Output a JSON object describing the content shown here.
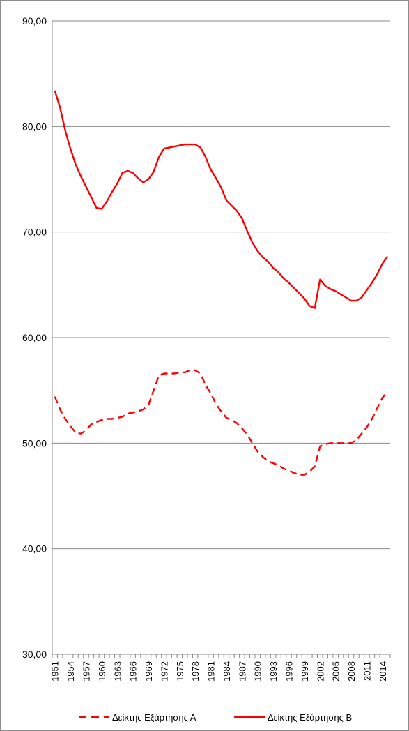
{
  "chart_data": {
    "type": "line",
    "title": "",
    "xlabel": "",
    "ylabel": "",
    "ylim": [
      30,
      90
    ],
    "y_ticks": [
      "30,00",
      "40,00",
      "50,00",
      "60,00",
      "70,00",
      "80,00",
      "90,00"
    ],
    "x_tick_labels": [
      "1951",
      "1954",
      "1957",
      "1960",
      "1963",
      "1966",
      "1969",
      "1972",
      "1975",
      "1978",
      "1981",
      "1984",
      "1987",
      "1990",
      "1993",
      "1996",
      "1999",
      "2002",
      "2005",
      "2008",
      "2011",
      "2014"
    ],
    "x_start": 1951,
    "x_end": 2015,
    "grid": "horizontal",
    "legend_position": "bottom",
    "series": [
      {
        "name": "Δείκτης Εξάρτησης Α",
        "color": "#ff0000",
        "style": "dashed",
        "points": [
          [
            1951,
            54.4
          ],
          [
            1952,
            53.2
          ],
          [
            1953,
            52.3
          ],
          [
            1954,
            51.6
          ],
          [
            1955,
            51.0
          ],
          [
            1956,
            50.9
          ],
          [
            1957,
            51.2
          ],
          [
            1958,
            51.8
          ],
          [
            1959,
            52.0
          ],
          [
            1960,
            52.2
          ],
          [
            1961,
            52.3
          ],
          [
            1962,
            52.3
          ],
          [
            1963,
            52.4
          ],
          [
            1964,
            52.5
          ],
          [
            1965,
            52.8
          ],
          [
            1966,
            52.9
          ],
          [
            1967,
            53.0
          ],
          [
            1968,
            53.2
          ],
          [
            1969,
            53.6
          ],
          [
            1970,
            55.0
          ],
          [
            1971,
            56.4
          ],
          [
            1972,
            56.6
          ],
          [
            1973,
            56.6
          ],
          [
            1974,
            56.6
          ],
          [
            1975,
            56.7
          ],
          [
            1976,
            56.7
          ],
          [
            1977,
            56.9
          ],
          [
            1978,
            56.9
          ],
          [
            1979,
            56.6
          ],
          [
            1980,
            55.5
          ],
          [
            1981,
            54.7
          ],
          [
            1982,
            53.7
          ],
          [
            1983,
            53.0
          ],
          [
            1984,
            52.4
          ],
          [
            1985,
            52.2
          ],
          [
            1986,
            51.9
          ],
          [
            1987,
            51.4
          ],
          [
            1988,
            50.8
          ],
          [
            1989,
            50.0
          ],
          [
            1990,
            49.2
          ],
          [
            1991,
            48.7
          ],
          [
            1992,
            48.3
          ],
          [
            1993,
            48.1
          ],
          [
            1994,
            47.9
          ],
          [
            1995,
            47.6
          ],
          [
            1996,
            47.4
          ],
          [
            1997,
            47.2
          ],
          [
            1998,
            47.0
          ],
          [
            1999,
            47.0
          ],
          [
            2000,
            47.3
          ],
          [
            2001,
            47.8
          ],
          [
            2002,
            49.7
          ],
          [
            2003,
            49.9
          ],
          [
            2004,
            50.0
          ],
          [
            2005,
            50.0
          ],
          [
            2006,
            50.0
          ],
          [
            2007,
            50.0
          ],
          [
            2008,
            50.0
          ],
          [
            2009,
            50.3
          ],
          [
            2010,
            50.9
          ],
          [
            2011,
            51.5
          ],
          [
            2012,
            52.3
          ],
          [
            2013,
            53.3
          ],
          [
            2014,
            54.3
          ],
          [
            2015,
            54.9
          ]
        ]
      },
      {
        "name": "Δείκτης Εξάρτησης Β",
        "color": "#ff0000",
        "style": "solid",
        "points": [
          [
            1951,
            83.4
          ],
          [
            1952,
            81.8
          ],
          [
            1953,
            79.6
          ],
          [
            1954,
            77.9
          ],
          [
            1955,
            76.4
          ],
          [
            1956,
            75.3
          ],
          [
            1957,
            74.3
          ],
          [
            1958,
            73.3
          ],
          [
            1959,
            72.3
          ],
          [
            1960,
            72.2
          ],
          [
            1961,
            72.9
          ],
          [
            1962,
            73.8
          ],
          [
            1963,
            74.6
          ],
          [
            1964,
            75.6
          ],
          [
            1965,
            75.8
          ],
          [
            1966,
            75.6
          ],
          [
            1967,
            75.1
          ],
          [
            1968,
            74.7
          ],
          [
            1969,
            75.0
          ],
          [
            1970,
            75.7
          ],
          [
            1971,
            77.1
          ],
          [
            1972,
            77.9
          ],
          [
            1973,
            78.0
          ],
          [
            1974,
            78.1
          ],
          [
            1975,
            78.2
          ],
          [
            1976,
            78.3
          ],
          [
            1977,
            78.3
          ],
          [
            1978,
            78.3
          ],
          [
            1979,
            78.0
          ],
          [
            1980,
            77.1
          ],
          [
            1981,
            75.9
          ],
          [
            1982,
            75.1
          ],
          [
            1983,
            74.2
          ],
          [
            1984,
            73.0
          ],
          [
            1985,
            72.5
          ],
          [
            1986,
            72.0
          ],
          [
            1987,
            71.3
          ],
          [
            1988,
            70.1
          ],
          [
            1989,
            69.0
          ],
          [
            1990,
            68.2
          ],
          [
            1991,
            67.6
          ],
          [
            1992,
            67.2
          ],
          [
            1993,
            66.6
          ],
          [
            1994,
            66.2
          ],
          [
            1995,
            65.6
          ],
          [
            1996,
            65.2
          ],
          [
            1997,
            64.7
          ],
          [
            1998,
            64.2
          ],
          [
            1999,
            63.7
          ],
          [
            2000,
            63.0
          ],
          [
            2001,
            62.8
          ],
          [
            2002,
            65.5
          ],
          [
            2003,
            64.9
          ],
          [
            2004,
            64.6
          ],
          [
            2005,
            64.4
          ],
          [
            2006,
            64.1
          ],
          [
            2007,
            63.8
          ],
          [
            2008,
            63.5
          ],
          [
            2009,
            63.5
          ],
          [
            2010,
            63.8
          ],
          [
            2011,
            64.5
          ],
          [
            2012,
            65.2
          ],
          [
            2013,
            66.0
          ],
          [
            2014,
            67.0
          ],
          [
            2015,
            67.7
          ]
        ]
      }
    ]
  }
}
